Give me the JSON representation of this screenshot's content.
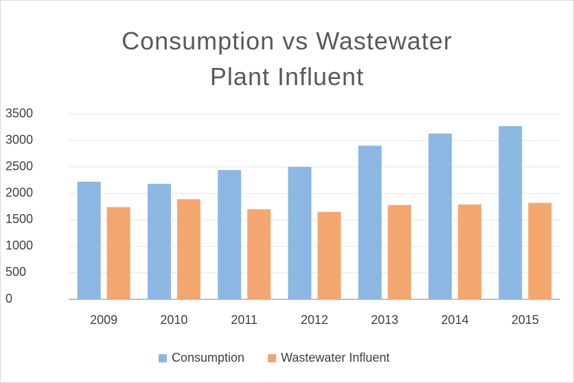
{
  "chart_data": {
    "type": "bar",
    "title": "Consumption vs Wastewater Plant Influent",
    "categories": [
      "2009",
      "2010",
      "2011",
      "2012",
      "2013",
      "2014",
      "2015"
    ],
    "series": [
      {
        "name": "Consumption",
        "color": "#8cb7e3",
        "values": [
          2220,
          2180,
          2440,
          2500,
          2900,
          3130,
          3270
        ]
      },
      {
        "name": "Wastewater Influent",
        "color": "#f4a66f",
        "values": [
          1740,
          1890,
          1700,
          1650,
          1780,
          1790,
          1820
        ]
      }
    ],
    "ylim": [
      0,
      3500
    ],
    "yticks": [
      0,
      500,
      1000,
      1500,
      2000,
      2500,
      3000,
      3500
    ],
    "grid": true,
    "legend": "bottom"
  }
}
